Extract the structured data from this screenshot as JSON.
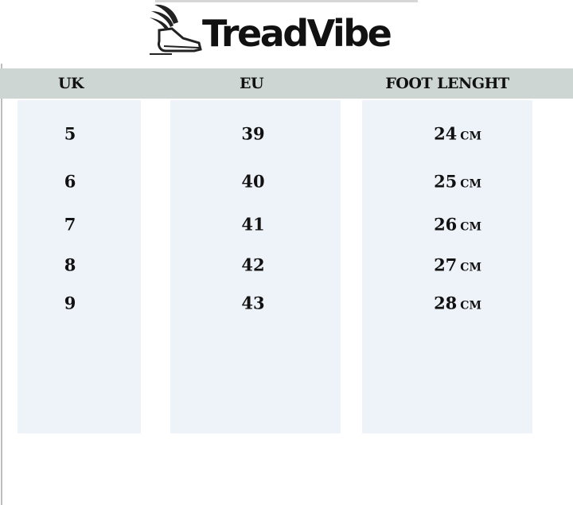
{
  "brand": {
    "name": "TreadVibe",
    "logo_icon": "winged-shoe-icon"
  },
  "colors": {
    "header_bg": "#cdd6d2",
    "column_bg": "#eef3f9"
  },
  "table": {
    "headers": [
      "UK",
      "EU",
      "FOOT LENGHT"
    ],
    "unit": "CM",
    "rows": [
      {
        "uk": "5",
        "eu": "39",
        "foot": "24"
      },
      {
        "uk": "6",
        "eu": "40",
        "foot": "25"
      },
      {
        "uk": "7",
        "eu": "41",
        "foot": "26"
      },
      {
        "uk": "8",
        "eu": "42",
        "foot": "27"
      },
      {
        "uk": "9",
        "eu": "43",
        "foot": "28"
      }
    ]
  }
}
